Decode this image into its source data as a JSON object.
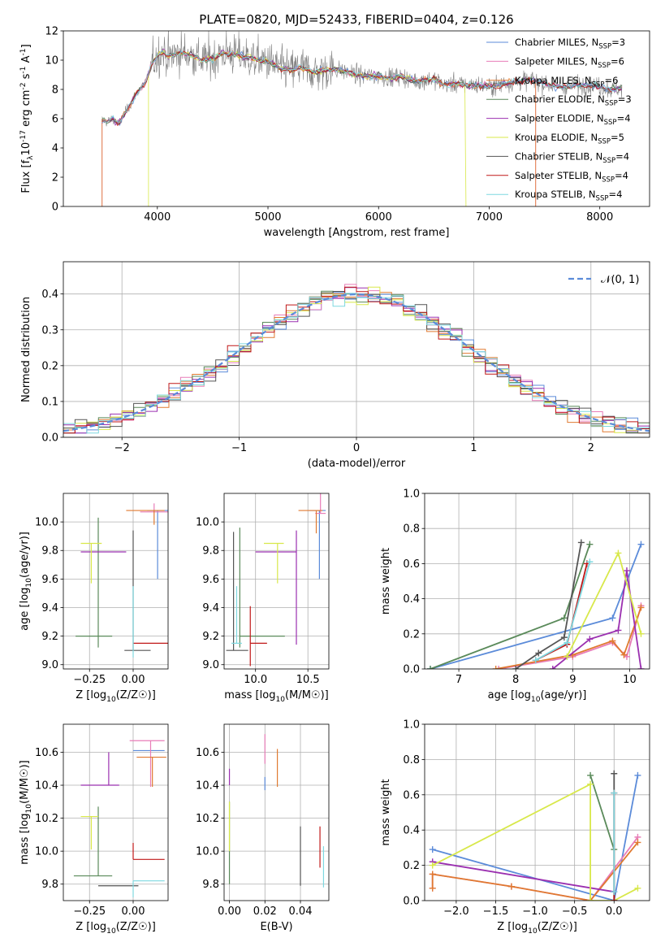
{
  "chart_data": [
    {
      "type": "line",
      "title": "PLATE=0820, MJD=52433, FIBERID=0404, z=0.126",
      "xlabel": "wavelength [Angstrom, rest frame]",
      "ylabel": "Flux [f_λ10^-17 erg cm^-2 s^-1 A^-1]",
      "xlim": [
        3150,
        8450
      ],
      "ylim": [
        0,
        12
      ],
      "xticks": [
        "4000",
        "5000",
        "6000",
        "7000",
        "8000"
      ],
      "yticks": [
        "0",
        "2",
        "4",
        "6",
        "8",
        "10",
        "12"
      ],
      "grid": false,
      "legend": "top-right",
      "legend_entries": [
        {
          "model": "Chabrier MILES, N",
          "sub": "SSP",
          "n": "=3",
          "color": "#5b8bd9"
        },
        {
          "model": "Salpeter MILES, N",
          "sub": "SSP",
          "n": "=6",
          "color": "#e87db8"
        },
        {
          "model": "Kroupa MILES, N",
          "sub": "SSP",
          "n": "=6",
          "color": "#e07a30"
        },
        {
          "model": "Chabrier ELODIE, N",
          "sub": "SSP",
          "n": "=3",
          "color": "#5a8a5a"
        },
        {
          "model": "Salpeter ELODIE, N",
          "sub": "SSP",
          "n": "=4",
          "color": "#9b30b0"
        },
        {
          "model": "Kroupa ELODIE, N",
          "sub": "SSP",
          "n": "=5",
          "color": "#d8e84a"
        },
        {
          "model": "Chabrier STELIB, N",
          "sub": "SSP",
          "n": "=4",
          "color": "#555555"
        },
        {
          "model": "Salpeter STELIB, N",
          "sub": "SSP",
          "n": "=4",
          "color": "#c01818"
        },
        {
          "model": "Kroupa STELIB, N",
          "sub": "SSP",
          "n": "=4",
          "color": "#7ed8e0"
        }
      ],
      "data_color": "#808080",
      "spectrum_x": [
        3500,
        3550,
        3600,
        3650,
        3700,
        3750,
        3800,
        3850,
        3900,
        3950,
        4000,
        4050,
        4100,
        4150,
        4200,
        4300,
        4400,
        4500,
        4600,
        4700,
        4800,
        4900,
        5000,
        5100,
        5200,
        5300,
        5400,
        5500,
        5600,
        5700,
        5800,
        5900,
        6000,
        6100,
        6200,
        6300,
        6400,
        6500,
        6600,
        6700,
        6800,
        6900,
        7000,
        7100,
        7200,
        7300,
        7400,
        7500,
        7600,
        7700,
        7800,
        7900,
        8000,
        8100,
        8200
      ],
      "spectrum_y": [
        5.9,
        5.8,
        6.0,
        5.6,
        6.3,
        6.9,
        7.6,
        8.1,
        8.6,
        9.8,
        10.3,
        10.6,
        10.2,
        10.4,
        10.5,
        10.4,
        10.0,
        10.1,
        10.5,
        10.4,
        10.2,
        10.0,
        9.9,
        9.5,
        9.3,
        9.5,
        9.2,
        9.3,
        9.4,
        9.2,
        9.0,
        8.9,
        8.9,
        8.8,
        8.9,
        8.6,
        8.6,
        8.7,
        8.3,
        8.4,
        8.3,
        8.3,
        8.2,
        8.3,
        8.5,
        8.6,
        8.6,
        8.4,
        8.2,
        8.2,
        8.3,
        8.3,
        8.2,
        8.0,
        8.1
      ],
      "cutoffs": [
        {
          "series": "Kroupa MILES",
          "x": [
            3500,
            7420
          ]
        },
        {
          "series": "Kroupa ELODIE",
          "x": [
            3920,
            6790
          ]
        },
        {
          "series": "Salpeter MILES",
          "x": [
            3500,
            7420
          ]
        }
      ]
    },
    {
      "type": "line",
      "xlabel": "(data-model)/error",
      "ylabel": "Normed distribution",
      "xlim": [
        -2.5,
        2.5
      ],
      "ylim": [
        0,
        0.49
      ],
      "xticks": [
        "−2",
        "−1",
        "0",
        "1",
        "2"
      ],
      "yticks": [
        "0.0",
        "0.1",
        "0.2",
        "0.3",
        "0.4"
      ],
      "grid": true,
      "legend": "top-right",
      "gaussian": {
        "label": "𝒩(0, 1)",
        "mean": 0,
        "sigma": 1,
        "color": "#5b8bd9"
      },
      "bin_width": 0.1,
      "bin_range": [
        -2.5,
        2.5
      ]
    },
    {
      "type": "scatter",
      "xlabel": "Z [log10(Z/Z☉)]",
      "ylabel": "age  [log10(age/yr)]",
      "xlim": [
        -0.4,
        0.2
      ],
      "ylim": [
        8.97,
        10.2
      ],
      "xticks": [
        "−0.25",
        "0.00"
      ],
      "yticks": [
        "9.0",
        "9.2",
        "9.4",
        "9.6",
        "9.8",
        "10.0"
      ],
      "grid": true,
      "points": [
        {
          "series": "Chabrier MILES",
          "x": 0.14,
          "y": 10.08,
          "xerr": [
            0.06,
            0.06
          ],
          "yerr": [
            0.48,
            0.0
          ]
        },
        {
          "series": "Salpeter MILES",
          "x": 0.12,
          "y": 10.07,
          "xerr": [
            0.08,
            0.08
          ],
          "yerr": [
            0.0,
            0.06
          ]
        },
        {
          "series": "Kroupa MILES",
          "x": 0.12,
          "y": 10.08,
          "xerr": [
            0.16,
            0.06
          ],
          "yerr": [
            0.1,
            0.0
          ]
        },
        {
          "series": "Chabrier ELODIE",
          "x": -0.2,
          "y": 9.2,
          "xerr": [
            0.13,
            0.08
          ],
          "yerr": [
            0.08,
            0.83
          ]
        },
        {
          "series": "Salpeter ELODIE",
          "x": -0.14,
          "y": 9.79,
          "xerr": [
            0.16,
            0.1
          ],
          "yerr": [
            0.0,
            0.0
          ]
        },
        {
          "series": "Kroupa ELODIE",
          "x": -0.24,
          "y": 9.85,
          "xerr": [
            0.06,
            0.06
          ],
          "yerr": [
            0.28,
            0.0
          ]
        },
        {
          "series": "Chabrier STELIB",
          "x": 0.0,
          "y": 9.1,
          "xerr": [
            0.05,
            0.1
          ],
          "yerr": [
            0.0,
            0.84
          ]
        },
        {
          "series": "Salpeter STELIB",
          "x": 0.12,
          "y": 9.15,
          "xerr": [
            0.12,
            0.08
          ],
          "yerr": [
            0.0,
            0.0
          ]
        },
        {
          "series": "Kroupa STELIB",
          "x": 0.0,
          "y": 9.15,
          "xerr": [
            0.0,
            0.0
          ],
          "yerr": [
            0.1,
            0.4
          ]
        }
      ]
    },
    {
      "type": "scatter",
      "xlabel": "mass [log10(M/M☉)]",
      "ylabel": "",
      "xlim": [
        9.7,
        10.7
      ],
      "ylim": [
        8.97,
        10.2
      ],
      "xticks": [
        "10.0",
        "10.5"
      ],
      "yticks": [
        "9.0",
        "9.2",
        "9.4",
        "9.6",
        "9.8",
        "10.0"
      ],
      "grid": true,
      "points": [
        {
          "series": "Chabrier MILES",
          "x": 10.61,
          "y": 10.08,
          "xerr": [
            0.1,
            0.06
          ],
          "yerr": [
            0.48,
            0.0
          ]
        },
        {
          "series": "Salpeter MILES",
          "x": 10.62,
          "y": 10.06,
          "xerr": [
            0.05,
            0.05
          ],
          "yerr": [
            0.0,
            0.17
          ]
        },
        {
          "series": "Kroupa MILES",
          "x": 10.58,
          "y": 10.08,
          "xerr": [
            0.17,
            0.06
          ],
          "yerr": [
            0.16,
            0.0
          ]
        },
        {
          "series": "Chabrier ELODIE",
          "x": 9.85,
          "y": 9.2,
          "xerr": [
            0.0,
            0.43
          ],
          "yerr": [
            0.08,
            0.76
          ]
        },
        {
          "series": "Salpeter ELODIE",
          "x": 10.39,
          "y": 9.79,
          "xerr": [
            0.39,
            0.0
          ],
          "yerr": [
            0.65,
            0.15
          ]
        },
        {
          "series": "Kroupa ELODIE",
          "x": 10.21,
          "y": 9.85,
          "xerr": [
            0.13,
            0.06
          ],
          "yerr": [
            0.28,
            0.0
          ]
        },
        {
          "series": "Chabrier STELIB",
          "x": 9.79,
          "y": 9.1,
          "xerr": [
            0.07,
            0.14
          ],
          "yerr": [
            0.0,
            0.83
          ]
        },
        {
          "series": "Salpeter STELIB",
          "x": 9.95,
          "y": 9.15,
          "xerr": [
            0.0,
            0.16
          ],
          "yerr": [
            0.16,
            0.26
          ]
        },
        {
          "series": "Kroupa STELIB",
          "x": 9.82,
          "y": 9.15,
          "xerr": [
            0.05,
            0.05
          ],
          "yerr": [
            0.0,
            0.4
          ]
        }
      ]
    },
    {
      "type": "line",
      "xlabel": "age  [log10(age/yr)]",
      "ylabel": "mass weight",
      "xlim": [
        6.4,
        10.35
      ],
      "ylim": [
        0,
        1.0
      ],
      "xticks": [
        "7",
        "8",
        "9",
        "10"
      ],
      "yticks": [
        "0.0",
        "0.2",
        "0.4",
        "0.6",
        "0.8",
        "1.0"
      ],
      "grid": true,
      "series": [
        {
          "name": "Chabrier MILES",
          "x": [
            6.5,
            9.7,
            10.2
          ],
          "y": [
            0.0,
            0.29,
            0.71
          ]
        },
        {
          "name": "Salpeter MILES",
          "x": [
            7.7,
            9.0,
            9.7,
            9.95,
            10.2
          ],
          "y": [
            0.0,
            0.07,
            0.15,
            0.07,
            0.36
          ]
        },
        {
          "name": "Kroupa MILES",
          "x": [
            7.65,
            9.0,
            9.7,
            9.9,
            10.2
          ],
          "y": [
            0.0,
            0.08,
            0.16,
            0.08,
            0.35
          ]
        },
        {
          "name": "Chabrier ELODIE",
          "x": [
            6.5,
            8.85,
            9.3
          ],
          "y": [
            0.0,
            0.29,
            0.71
          ]
        },
        {
          "name": "Salpeter ELODIE",
          "x": [
            8.65,
            9.3,
            9.8,
            9.95,
            10.2
          ],
          "y": [
            0.0,
            0.17,
            0.22,
            0.56,
            0.0
          ]
        },
        {
          "name": "Kroupa ELODIE",
          "x": [
            8.9,
            9.8,
            10.2
          ],
          "y": [
            0.07,
            0.66,
            0.2
          ]
        },
        {
          "name": "Chabrier STELIB",
          "x": [
            8.0,
            8.4,
            8.85,
            9.15
          ],
          "y": [
            0.0,
            0.09,
            0.18,
            0.72
          ]
        },
        {
          "name": "Salpeter STELIB",
          "x": [
            8.35,
            8.9,
            9.25
          ],
          "y": [
            0.05,
            0.14,
            0.6
          ]
        },
        {
          "name": "Kroupa STELIB",
          "x": [
            8.35,
            8.9,
            9.3
          ],
          "y": [
            0.05,
            0.15,
            0.61
          ]
        }
      ]
    },
    {
      "type": "scatter",
      "xlabel": "Z [log10(Z/Z☉)]",
      "ylabel": "mass [log10(M/M☉)]",
      "xlim": [
        -0.4,
        0.2
      ],
      "ylim": [
        9.7,
        10.77
      ],
      "xticks": [
        "−0.25",
        "0.00"
      ],
      "yticks": [
        "9.8",
        "10.0",
        "10.2",
        "10.4",
        "10.6"
      ],
      "grid": true,
      "points": [
        {
          "series": "Chabrier MILES",
          "x": 0.1,
          "y": 10.61,
          "xerr": [
            0.1,
            0.08
          ],
          "yerr": [
            0.0,
            0.0
          ]
        },
        {
          "series": "Salpeter MILES",
          "x": 0.1,
          "y": 10.67,
          "xerr": [
            0.12,
            0.08
          ],
          "yerr": [
            0.28,
            0.0
          ]
        },
        {
          "series": "Kroupa MILES",
          "x": 0.11,
          "y": 10.57,
          "xerr": [
            0.09,
            0.08
          ],
          "yerr": [
            0.18,
            0.0
          ]
        },
        {
          "series": "Chabrier ELODIE",
          "x": -0.2,
          "y": 9.85,
          "xerr": [
            0.14,
            0.08
          ],
          "yerr": [
            0.0,
            0.42
          ]
        },
        {
          "series": "Salpeter ELODIE",
          "x": -0.14,
          "y": 10.4,
          "xerr": [
            0.16,
            0.06
          ],
          "yerr": [
            0.0,
            0.2
          ]
        },
        {
          "series": "Kroupa ELODIE",
          "x": -0.24,
          "y": 10.21,
          "xerr": [
            0.06,
            0.04
          ],
          "yerr": [
            0.2,
            0.0
          ]
        },
        {
          "series": "Chabrier STELIB",
          "x": -0.15,
          "y": 9.79,
          "xerr": [
            0.05,
            0.18
          ],
          "yerr": [
            0.0,
            0.0
          ]
        },
        {
          "series": "Salpeter STELIB",
          "x": 0.0,
          "y": 9.95,
          "xerr": [
            0.0,
            0.18
          ],
          "yerr": [
            0.0,
            0.1
          ]
        },
        {
          "series": "Kroupa STELIB",
          "x": 0.0,
          "y": 9.82,
          "xerr": [
            0.0,
            0.18
          ],
          "yerr": [
            0.1,
            0.0
          ]
        }
      ]
    },
    {
      "type": "scatter",
      "xlabel": "E(B-V)",
      "ylabel": "",
      "xlim": [
        -0.003,
        0.056
      ],
      "ylim": [
        9.7,
        10.77
      ],
      "xticks": [
        "0.00",
        "0.02",
        "0.04"
      ],
      "yticks": [
        "9.8",
        "10.0",
        "10.2",
        "10.4",
        "10.6"
      ],
      "grid": true,
      "points": [
        {
          "series": "Chabrier MILES",
          "x": 0.02,
          "y": 10.45,
          "xerr": [
            0.0,
            0.0
          ],
          "yerr": [
            0.08,
            0.0
          ]
        },
        {
          "series": "Salpeter MILES",
          "x": 0.02,
          "y": 10.63,
          "xerr": [
            0.0,
            0.0
          ],
          "yerr": [
            0.1,
            0.08
          ]
        },
        {
          "series": "Kroupa MILES",
          "x": 0.027,
          "y": 10.5,
          "xerr": [
            0.0,
            0.0
          ],
          "yerr": [
            0.11,
            0.12
          ]
        },
        {
          "series": "Chabrier ELODIE",
          "x": 0.0,
          "y": 9.85,
          "xerr": [
            0.0,
            0.0
          ],
          "yerr": [
            0.05,
            0.45
          ]
        },
        {
          "series": "Salpeter ELODIE",
          "x": 0.0,
          "y": 10.4,
          "xerr": [
            0.0,
            0.0
          ],
          "yerr": [
            0.0,
            0.1
          ]
        },
        {
          "series": "Kroupa ELODIE",
          "x": 0.0,
          "y": 10.1,
          "xerr": [
            0.0,
            0.0
          ],
          "yerr": [
            0.1,
            0.2
          ]
        },
        {
          "series": "Chabrier STELIB",
          "x": 0.04,
          "y": 9.95,
          "xerr": [
            0.0,
            0.0
          ],
          "yerr": [
            0.16,
            0.2
          ]
        },
        {
          "series": "Salpeter STELIB",
          "x": 0.051,
          "y": 10.03,
          "xerr": [
            0.0,
            0.0
          ],
          "yerr": [
            0.13,
            0.12
          ]
        },
        {
          "series": "Kroupa STELIB",
          "x": 0.053,
          "y": 9.9,
          "xerr": [
            0.0,
            0.0
          ],
          "yerr": [
            0.12,
            0.13
          ]
        }
      ]
    },
    {
      "type": "line",
      "xlabel": "Z [log10(Z/Z☉)]",
      "ylabel": "mass weight",
      "xlim": [
        -2.4,
        0.45
      ],
      "ylim": [
        0,
        1.0
      ],
      "xticks": [
        "−2.0",
        "−1.5",
        "−1.0",
        "−0.5",
        "0.0"
      ],
      "yticks": [
        "0.0",
        "0.2",
        "0.4",
        "0.6",
        "0.8",
        "1.0"
      ],
      "grid": true,
      "series": [
        {
          "name": "Chabrier MILES",
          "x": [
            -2.3,
            0.0,
            0.3
          ],
          "y": [
            0.29,
            0.0,
            0.71
          ]
        },
        {
          "name": "Salpeter MILES",
          "x": [
            -2.3,
            -2.3,
            -1.3,
            -0.3,
            0.3
          ],
          "y": [
            0.07,
            0.15,
            0.08,
            0.0,
            0.36
          ]
        },
        {
          "name": "Kroupa MILES",
          "x": [
            -2.3,
            -2.3,
            -1.3,
            -0.3,
            0.3
          ],
          "y": [
            0.07,
            0.15,
            0.08,
            0.0,
            0.33
          ]
        },
        {
          "name": "Chabrier ELODIE",
          "x": [
            -0.3,
            0.0
          ],
          "y": [
            0.71,
            0.29
          ]
        },
        {
          "name": "Salpeter ELODIE",
          "x": [
            -2.3,
            0.0
          ],
          "y": [
            0.22,
            0.05
          ]
        },
        {
          "name": "Kroupa ELODIE",
          "x": [
            -2.3,
            -0.3,
            -0.3,
            0.0,
            0.3
          ],
          "y": [
            0.2,
            0.66,
            0.0,
            0.0,
            0.07
          ]
        },
        {
          "name": "Chabrier STELIB",
          "x": [
            0.0,
            0.0
          ],
          "y": [
            0.0,
            0.72
          ]
        },
        {
          "name": "Salpeter STELIB",
          "x": [
            0.0,
            0.0
          ],
          "y": [
            0.0,
            0.61
          ]
        },
        {
          "name": "Kroupa STELIB",
          "x": [
            0.0,
            0.0
          ],
          "y": [
            0.05,
            0.61
          ]
        }
      ]
    }
  ]
}
